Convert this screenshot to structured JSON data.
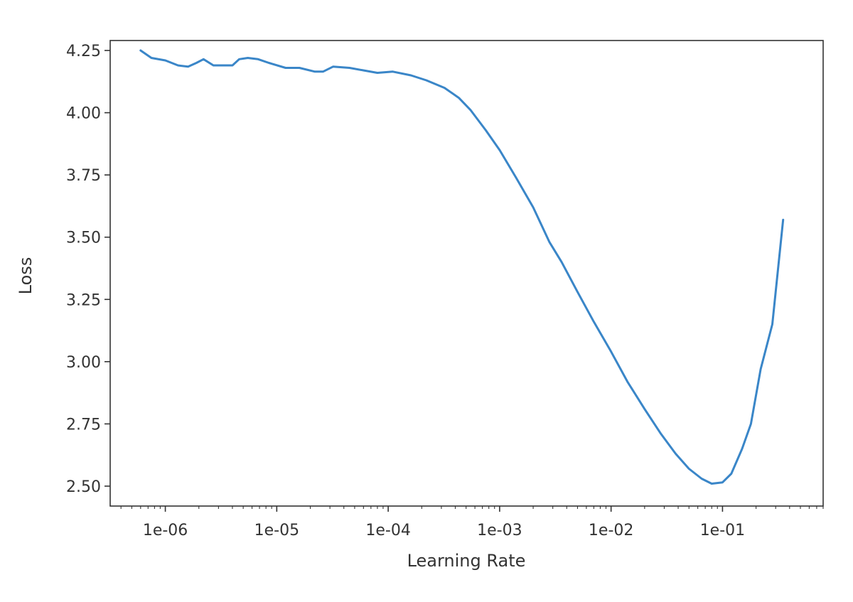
{
  "chart_data": {
    "type": "line",
    "title": "",
    "xlabel": "Learning Rate",
    "ylabel": "Loss",
    "xscale": "log",
    "xlim": [
      3.2e-07,
      0.8
    ],
    "ylim": [
      2.42,
      4.29
    ],
    "grid": false,
    "line_color": "#3a86c8",
    "x_ticks": [
      {
        "value": 1e-06,
        "label": "1e-06"
      },
      {
        "value": 1e-05,
        "label": "1e-05"
      },
      {
        "value": 0.0001,
        "label": "1e-04"
      },
      {
        "value": 0.001,
        "label": "1e-03"
      },
      {
        "value": 0.01,
        "label": "1e-02"
      },
      {
        "value": 0.1,
        "label": "1e-01"
      }
    ],
    "y_ticks": [
      {
        "value": 2.5,
        "label": "2.50"
      },
      {
        "value": 2.75,
        "label": "2.75"
      },
      {
        "value": 3.0,
        "label": "3.00"
      },
      {
        "value": 3.25,
        "label": "3.25"
      },
      {
        "value": 3.5,
        "label": "3.50"
      },
      {
        "value": 3.75,
        "label": "3.75"
      },
      {
        "value": 4.0,
        "label": "4.00"
      },
      {
        "value": 4.25,
        "label": "4.25"
      }
    ],
    "series": [
      {
        "points": [
          [
            6e-07,
            4.25
          ],
          [
            7.5e-07,
            4.22
          ],
          [
            1e-06,
            4.21
          ],
          [
            1.3e-06,
            4.19
          ],
          [
            1.6e-06,
            4.185
          ],
          [
            1.9e-06,
            4.2
          ],
          [
            2.2e-06,
            4.215
          ],
          [
            2.7e-06,
            4.19
          ],
          [
            3.4e-06,
            4.19
          ],
          [
            4e-06,
            4.19
          ],
          [
            4.6e-06,
            4.215
          ],
          [
            5.5e-06,
            4.22
          ],
          [
            6.8e-06,
            4.215
          ],
          [
            8.5e-06,
            4.2
          ],
          [
            1.2e-05,
            4.18
          ],
          [
            1.6e-05,
            4.18
          ],
          [
            2.2e-05,
            4.165
          ],
          [
            2.6e-05,
            4.165
          ],
          [
            3.2e-05,
            4.185
          ],
          [
            4.5e-05,
            4.18
          ],
          [
            6e-05,
            4.17
          ],
          [
            8e-05,
            4.16
          ],
          [
            0.00011,
            4.165
          ],
          [
            0.00016,
            4.15
          ],
          [
            0.00022,
            4.13
          ],
          [
            0.00032,
            4.1
          ],
          [
            0.00043,
            4.06
          ],
          [
            0.00055,
            4.01
          ],
          [
            0.00075,
            3.93
          ],
          [
            0.001,
            3.85
          ],
          [
            0.0014,
            3.74
          ],
          [
            0.002,
            3.62
          ],
          [
            0.0028,
            3.48
          ],
          [
            0.0036,
            3.4
          ],
          [
            0.005,
            3.28
          ],
          [
            0.007,
            3.16
          ],
          [
            0.01,
            3.04
          ],
          [
            0.014,
            2.92
          ],
          [
            0.02,
            2.81
          ],
          [
            0.028,
            2.71
          ],
          [
            0.038,
            2.63
          ],
          [
            0.05,
            2.57
          ],
          [
            0.065,
            2.53
          ],
          [
            0.08,
            2.51
          ],
          [
            0.1,
            2.515
          ],
          [
            0.12,
            2.55
          ],
          [
            0.15,
            2.65
          ],
          [
            0.18,
            2.75
          ],
          [
            0.22,
            2.97
          ],
          [
            0.28,
            3.15
          ],
          [
            0.3,
            3.28
          ],
          [
            0.35,
            3.57
          ]
        ]
      }
    ]
  }
}
